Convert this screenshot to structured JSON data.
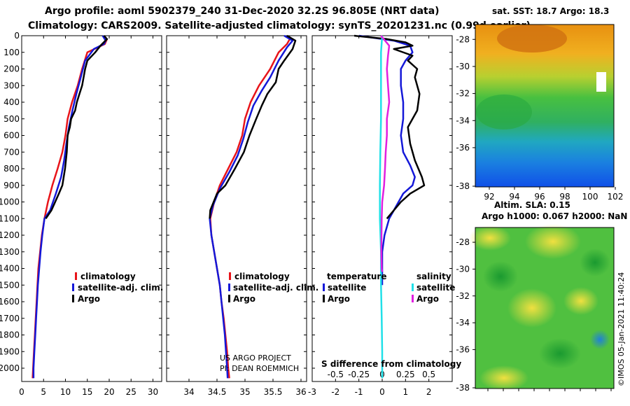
{
  "header": {
    "title_line1": "Argo profile: aoml 5902379_240 31-Dec-2020 32.2S 96.805E (NRT data)",
    "title_line2": "Climatology: CARS2009. Satellite-adjusted climatology: synTS_20201231.nc (0.99d earlier)"
  },
  "colors": {
    "climatology": "#e8141a",
    "satellite_adj": "#1418d8",
    "argo": "#000000",
    "satellite_salinity": "#20e0e8",
    "argo_salinity": "#e020e0"
  },
  "chart_data": [
    {
      "id": "temperature",
      "type": "line",
      "ylim": [
        2080,
        0
      ],
      "xlim": [
        0,
        32
      ],
      "y_ticks": [
        0,
        100,
        200,
        300,
        400,
        500,
        600,
        700,
        800,
        900,
        1000,
        1100,
        1200,
        1300,
        1400,
        1500,
        1600,
        1700,
        1800,
        1900,
        2000
      ],
      "x_ticks": [
        0,
        5,
        10,
        15,
        20,
        25,
        30
      ],
      "legend": [
        "climatology",
        "satellite-adj. clim.",
        "Argo"
      ],
      "series": [
        {
          "name": "climatology",
          "color": "#e8141a",
          "points": [
            [
              19.5,
              20
            ],
            [
              19,
              50
            ],
            [
              15,
              100
            ],
            [
              13.8,
              200
            ],
            [
              12.8,
              300
            ],
            [
              11.5,
              400
            ],
            [
              10.5,
              500
            ],
            [
              10,
              600
            ],
            [
              9.3,
              700
            ],
            [
              8.2,
              800
            ],
            [
              7,
              900
            ],
            [
              6,
              1000
            ],
            [
              5.2,
              1100
            ],
            [
              4.6,
              1200
            ],
            [
              4.2,
              1300
            ],
            [
              3.8,
              1400
            ],
            [
              3.6,
              1500
            ],
            [
              3.4,
              1600
            ],
            [
              3.2,
              1700
            ],
            [
              3,
              1800
            ],
            [
              2.8,
              1900
            ],
            [
              2.6,
              2000
            ],
            [
              2.5,
              2060
            ]
          ]
        },
        {
          "name": "satellite-adj. clim.",
          "color": "#1418d8",
          "points": [
            [
              18.5,
              0
            ],
            [
              19.2,
              30
            ],
            [
              18.8,
              50
            ],
            [
              16.5,
              80
            ],
            [
              14.5,
              150
            ],
            [
              13.5,
              250
            ],
            [
              12.5,
              350
            ],
            [
              11.6,
              450
            ],
            [
              10.8,
              550
            ],
            [
              10.2,
              650
            ],
            [
              9.7,
              750
            ],
            [
              9,
              850
            ],
            [
              7.8,
              950
            ],
            [
              6.5,
              1050
            ],
            [
              5.2,
              1100
            ],
            [
              4.7,
              1200
            ],
            [
              4.3,
              1300
            ],
            [
              4,
              1400
            ],
            [
              3.7,
              1500
            ],
            [
              3.5,
              1600
            ],
            [
              3.3,
              1700
            ],
            [
              3.1,
              1800
            ],
            [
              2.9,
              1900
            ],
            [
              2.7,
              2000
            ],
            [
              2.7,
              2060
            ]
          ]
        },
        {
          "name": "Argo",
          "color": "#000000",
          "points": [
            [
              18.8,
              0
            ],
            [
              19.5,
              20
            ],
            [
              18,
              60
            ],
            [
              16.8,
              100
            ],
            [
              15,
              150
            ],
            [
              14.5,
              200
            ],
            [
              13.8,
              300
            ],
            [
              13.2,
              350
            ],
            [
              12.6,
              400
            ],
            [
              12.2,
              450
            ],
            [
              11.3,
              500
            ],
            [
              11,
              550
            ],
            [
              10.5,
              600
            ],
            [
              10.3,
              700
            ],
            [
              9.9,
              800
            ],
            [
              9.3,
              900
            ],
            [
              8.5,
              950
            ],
            [
              6.8,
              1050
            ],
            [
              5.5,
              1100
            ]
          ]
        }
      ]
    },
    {
      "id": "salinity",
      "type": "line",
      "ylim": [
        2080,
        0
      ],
      "xlim": [
        33.6,
        36.1
      ],
      "x_ticks": [
        34,
        34.5,
        35,
        35.5,
        36
      ],
      "legend": [
        "climatology",
        "satellite-adj. clim.",
        "Argo"
      ],
      "series": [
        {
          "name": "climatology",
          "color": "#e8141a",
          "points": [
            [
              35.8,
              20
            ],
            [
              35.75,
              50
            ],
            [
              35.6,
              100
            ],
            [
              35.45,
              200
            ],
            [
              35.25,
              300
            ],
            [
              35.1,
              400
            ],
            [
              35,
              500
            ],
            [
              34.95,
              600
            ],
            [
              34.85,
              700
            ],
            [
              34.7,
              800
            ],
            [
              34.55,
              900
            ],
            [
              34.45,
              1000
            ],
            [
              34.38,
              1100
            ],
            [
              34.4,
              1200
            ],
            [
              34.45,
              1300
            ],
            [
              34.5,
              1400
            ],
            [
              34.55,
              1500
            ],
            [
              34.58,
              1600
            ],
            [
              34.62,
              1700
            ],
            [
              34.65,
              1800
            ],
            [
              34.68,
              1900
            ],
            [
              34.7,
              2000
            ],
            [
              34.72,
              2060
            ]
          ]
        },
        {
          "name": "satellite-adj. clim.",
          "color": "#1418d8",
          "points": [
            [
              35.7,
              0
            ],
            [
              35.85,
              30
            ],
            [
              35.75,
              70
            ],
            [
              35.6,
              150
            ],
            [
              35.45,
              250
            ],
            [
              35.3,
              330
            ],
            [
              35.15,
              420
            ],
            [
              35.05,
              520
            ],
            [
              34.97,
              620
            ],
            [
              34.87,
              720
            ],
            [
              34.72,
              820
            ],
            [
              34.55,
              920
            ],
            [
              34.43,
              1020
            ],
            [
              34.37,
              1100
            ],
            [
              34.4,
              1200
            ],
            [
              34.45,
              1300
            ],
            [
              34.5,
              1400
            ],
            [
              34.55,
              1500
            ],
            [
              34.58,
              1600
            ],
            [
              34.61,
              1700
            ],
            [
              34.64,
              1800
            ],
            [
              34.66,
              1900
            ],
            [
              34.68,
              2000
            ],
            [
              34.69,
              2060
            ]
          ]
        },
        {
          "name": "Argo",
          "color": "#000000",
          "points": [
            [
              35.75,
              0
            ],
            [
              35.9,
              30
            ],
            [
              35.85,
              80
            ],
            [
              35.7,
              150
            ],
            [
              35.6,
              200
            ],
            [
              35.55,
              280
            ],
            [
              35.4,
              350
            ],
            [
              35.3,
              420
            ],
            [
              35.2,
              500
            ],
            [
              35.08,
              600
            ],
            [
              34.98,
              700
            ],
            [
              34.82,
              800
            ],
            [
              34.65,
              900
            ],
            [
              34.5,
              950
            ],
            [
              34.38,
              1050
            ],
            [
              34.37,
              1100
            ]
          ]
        }
      ]
    },
    {
      "id": "difference",
      "type": "line",
      "ylim": [
        2080,
        0
      ],
      "xlim": [
        -3,
        3
      ],
      "x_ticks": [
        -3,
        -2,
        -1,
        0,
        1,
        2
      ],
      "top_ticks": [
        -0.5,
        -0.25,
        0,
        0.25,
        0.5
      ],
      "xlabel": "S difference from climatology",
      "legend_left_title": "temperature",
      "legend_right_title": "salinity",
      "legend": [
        "satellite",
        "Argo",
        "satellite",
        "Argo"
      ],
      "series": [
        {
          "name": "temperature satellite",
          "color": "#1418d8",
          "points": [
            [
              -1,
              0
            ],
            [
              0.5,
              30
            ],
            [
              1.2,
              60
            ],
            [
              1.3,
              100
            ],
            [
              1,
              150
            ],
            [
              0.8,
              200
            ],
            [
              0.8,
              300
            ],
            [
              0.9,
              400
            ],
            [
              0.9,
              500
            ],
            [
              0.8,
              600
            ],
            [
              0.9,
              700
            ],
            [
              1.2,
              780
            ],
            [
              1.4,
              850
            ],
            [
              1.3,
              900
            ],
            [
              0.9,
              950
            ],
            [
              0.5,
              1050
            ],
            [
              0.3,
              1100
            ],
            [
              0.1,
              1200
            ],
            [
              0,
              1300
            ],
            [
              0,
              1400
            ],
            [
              0,
              1500
            ]
          ]
        },
        {
          "name": "temperature Argo",
          "color": "#000000",
          "points": [
            [
              -1.2,
              0
            ],
            [
              0.2,
              20
            ],
            [
              1,
              40
            ],
            [
              1.3,
              60
            ],
            [
              0.5,
              80
            ],
            [
              1.3,
              120
            ],
            [
              1.1,
              150
            ],
            [
              1.5,
              200
            ],
            [
              1.4,
              250
            ],
            [
              1.6,
              350
            ],
            [
              1.5,
              450
            ],
            [
              1.1,
              550
            ],
            [
              1.2,
              650
            ],
            [
              1.4,
              750
            ],
            [
              1.7,
              850
            ],
            [
              1.8,
              900
            ],
            [
              1.2,
              950
            ],
            [
              0.8,
              1000
            ],
            [
              0.2,
              1100
            ]
          ]
        },
        {
          "name": "salinity satellite",
          "color": "#20e0e8",
          "points": [
            [
              0,
              0
            ],
            [
              -0.05,
              100
            ],
            [
              -0.05,
              300
            ],
            [
              -0.05,
              500
            ],
            [
              -0.08,
              700
            ],
            [
              -0.1,
              900
            ],
            [
              -0.1,
              1100
            ],
            [
              -0.05,
              1300
            ],
            [
              -0.05,
              1500
            ],
            [
              -0.02,
              1700
            ],
            [
              0,
              1900
            ],
            [
              0,
              2060
            ]
          ]
        },
        {
          "name": "salinity Argo",
          "color": "#e020e0",
          "points": [
            [
              -0.05,
              0
            ],
            [
              0.3,
              60
            ],
            [
              0.25,
              120
            ],
            [
              0.2,
              200
            ],
            [
              0.25,
              300
            ],
            [
              0.3,
              400
            ],
            [
              0.2,
              500
            ],
            [
              0.2,
              600
            ],
            [
              0.15,
              700
            ],
            [
              0.12,
              800
            ],
            [
              0.08,
              900
            ],
            [
              0,
              1000
            ],
            [
              -0.02,
              1100
            ],
            [
              -0.03,
              1200
            ],
            [
              -0.04,
              1300
            ],
            [
              -0.02,
              1400
            ],
            [
              0,
              1420
            ]
          ]
        }
      ]
    },
    {
      "id": "sst_map",
      "type": "heatmap",
      "title": "sat. SST: 18.7 Argo: 18.3",
      "x_ticks": [
        92,
        94,
        96,
        98,
        100,
        102
      ],
      "y_ticks": [
        -28,
        -30,
        -32,
        -34,
        -36,
        -38
      ]
    },
    {
      "id": "sla_map",
      "type": "heatmap",
      "title_line1": "Altim. SLA: 0.15",
      "title_line2": "Argo h1000: 0.067 h2000: NaN",
      "y_ticks": [
        -28,
        -30,
        -32,
        -34,
        -36,
        -38
      ]
    }
  ],
  "legend_labels": {
    "climatology": "climatology",
    "satellite_adj": "satellite-adj. clim.",
    "argo": "Argo",
    "temperature": "temperature",
    "salinity": "salinity",
    "satellite": "satellite"
  },
  "credits": {
    "project": "US ARGO PROJECT",
    "pi": "PI: DEAN ROEMMICH",
    "imos": "©IMOS 05-Jan-2021 11:40:24"
  }
}
